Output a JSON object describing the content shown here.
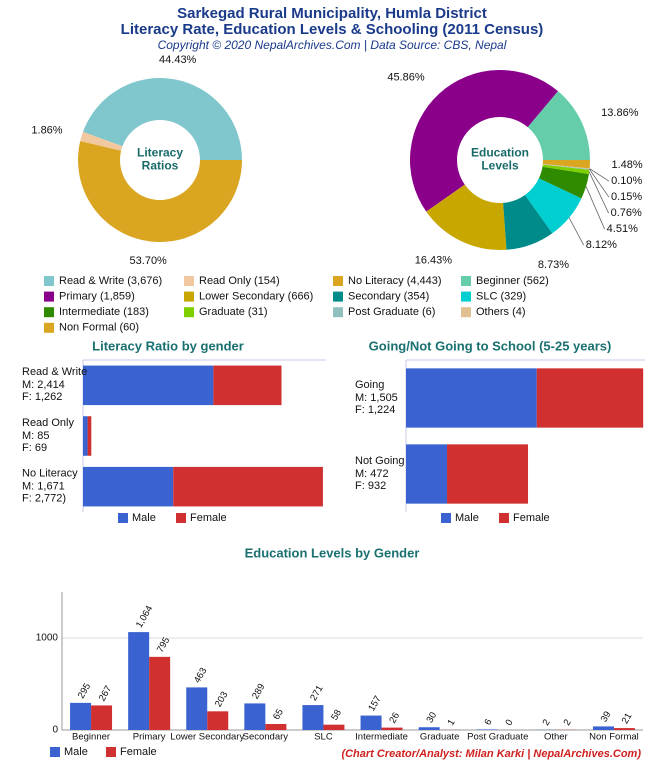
{
  "header": {
    "title": [
      "Sarkegad Rural Municipality, Humla District",
      "Literacy Rate, Education Levels & Schooling (2011 Census)"
    ],
    "subtitle": "Copyright © 2020 NepalArchives.Com | Data Source: CBS, Nepal"
  },
  "chart_data": [
    {
      "type": "pie",
      "center_label": [
        "Literacy",
        "Ratios"
      ],
      "categories": [
        "Read & Write (3,676)",
        "Read Only (154)",
        "No Literacy (4,443)"
      ],
      "values": [
        44.43,
        1.86,
        53.7
      ],
      "value_labels": [
        "44.43%",
        "1.86%",
        "53.70%"
      ],
      "colors": [
        "#7fc6cd",
        "#f2c8a0",
        "#daa520"
      ]
    },
    {
      "type": "pie",
      "center_label": [
        "Education",
        "Levels"
      ],
      "categories": [
        "Beginner (562)",
        "Primary (1,859)",
        "Lower Secondary (666)",
        "Secondary (354)",
        "SLC (329)",
        "Intermediate (183)",
        "Graduate (31)",
        "Post Graduate (6)",
        "Others (4)",
        "Non Formal (60)"
      ],
      "values": [
        13.86,
        45.86,
        16.43,
        8.73,
        8.12,
        4.51,
        0.76,
        0.15,
        0.1,
        1.48
      ],
      "value_labels": [
        "13.86%",
        "45.86%",
        "16.43%",
        "8.73%",
        "8.12%",
        "4.51%",
        "0.76%",
        "0.15%",
        "0.10%",
        "1.48%"
      ],
      "colors": [
        "#66cdaa",
        "#8b008b",
        "#c8a800",
        "#008b8b",
        "#00ced1",
        "#2e8b00",
        "#7fd000",
        "#8fbfbf",
        "#e0c090",
        "#daa520"
      ]
    },
    {
      "type": "bar",
      "orientation": "horizontal",
      "stacked": true,
      "title": "Literacy Ratio by gender",
      "categories": [
        "Read & Write",
        "Read Only",
        "No Literacy"
      ],
      "series": [
        {
          "name": "Male",
          "color": "#3a62d0",
          "values": [
            2414,
            85,
            1671
          ],
          "value_labels": [
            "M: 2,414",
            "M: 85",
            "M: 1,671"
          ]
        },
        {
          "name": "Female",
          "color": "#d03030",
          "values": [
            1262,
            69,
            2772
          ],
          "value_labels": [
            "F: 1,262",
            "F: 69",
            "F: 2,772)"
          ]
        }
      ],
      "xlim": [
        0,
        4500
      ]
    },
    {
      "type": "bar",
      "orientation": "horizontal",
      "stacked": true,
      "title": "Going/Not Going to School (5-25 years)",
      "categories": [
        "Going",
        "Not Going"
      ],
      "series": [
        {
          "name": "Male",
          "color": "#3a62d0",
          "values": [
            1505,
            472
          ],
          "value_labels": [
            "M: 1,505",
            "M: 472"
          ]
        },
        {
          "name": "Female",
          "color": "#d03030",
          "values": [
            1224,
            932
          ],
          "value_labels": [
            "F: 1,224",
            "F: 932"
          ]
        }
      ],
      "xlim": [
        0,
        2750
      ]
    },
    {
      "type": "bar",
      "orientation": "vertical",
      "title": "Education Levels by Gender",
      "categories": [
        "Beginner",
        "Primary",
        "Lower Secondary",
        "Secondary",
        "SLC",
        "Intermediate",
        "Graduate",
        "Post Graduate",
        "Other",
        "Non Formal"
      ],
      "series": [
        {
          "name": "Male",
          "color": "#3a62d0",
          "values": [
            295,
            1064,
            463,
            289,
            271,
            157,
            30,
            6,
            2,
            39
          ],
          "value_labels": [
            "295",
            "1,064",
            "463",
            "289",
            "271",
            "157",
            "30",
            "6",
            "2",
            "39"
          ]
        },
        {
          "name": "Female",
          "color": "#d03030",
          "values": [
            267,
            795,
            203,
            65,
            58,
            26,
            1,
            0,
            2,
            21
          ],
          "value_labels": [
            "267",
            "795",
            "203",
            "65",
            "58",
            "26",
            "1",
            "0",
            "2",
            "21"
          ]
        }
      ],
      "ylim": [
        0,
        1500
      ],
      "yticks": [
        0,
        1000
      ]
    }
  ],
  "credit": "(Chart Creator/Analyst: Milan Karki | NepalArchives.Com)"
}
